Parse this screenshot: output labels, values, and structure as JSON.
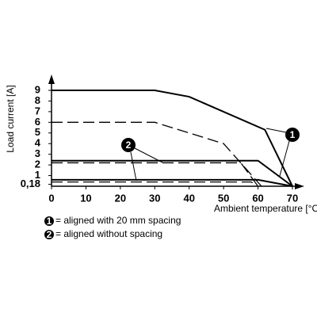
{
  "chart_data": {
    "type": "line",
    "y_label": "Load current [A]",
    "x_label": "Ambient temperature [°C]",
    "xlim": [
      0,
      70
    ],
    "ylim": [
      0,
      9
    ],
    "xticks": [
      0,
      10,
      20,
      30,
      40,
      50,
      60,
      70
    ],
    "yticks": [
      {
        "value": 0.18,
        "label": "0,18"
      },
      1,
      2,
      3,
      4,
      5,
      6,
      7,
      8,
      9
    ],
    "series": [
      {
        "color": "#000000",
        "dash": false,
        "x": [
          0,
          30,
          40,
          62,
          70
        ],
        "values": [
          9,
          9,
          8.4,
          5.3,
          0
        ]
      },
      {
        "color": "#000000",
        "dash": false,
        "x": [
          0,
          60,
          70
        ],
        "values": [
          2.4,
          2.4,
          0
        ]
      },
      {
        "color": "#000000",
        "dash": false,
        "x": [
          0,
          60,
          70
        ],
        "values": [
          0.6,
          0.6,
          0
        ]
      },
      {
        "color": "#000000",
        "dash": true,
        "x": [
          0,
          30,
          50,
          61
        ],
        "values": [
          6,
          6,
          4,
          0
        ]
      },
      {
        "color": "#000000",
        "dash": true,
        "x": [
          0,
          55,
          60
        ],
        "values": [
          2.2,
          2.2,
          0
        ]
      },
      {
        "color": "#000000",
        "dash": true,
        "x": [
          0,
          58,
          60
        ],
        "values": [
          0.4,
          0.4,
          0
        ]
      }
    ],
    "markers": [
      "1",
      "2"
    ],
    "legend": [
      {
        "marker": "1",
        "label": "= aligned with 20 mm spacing"
      },
      {
        "marker": "2",
        "label": "= aligned without spacing"
      }
    ]
  }
}
